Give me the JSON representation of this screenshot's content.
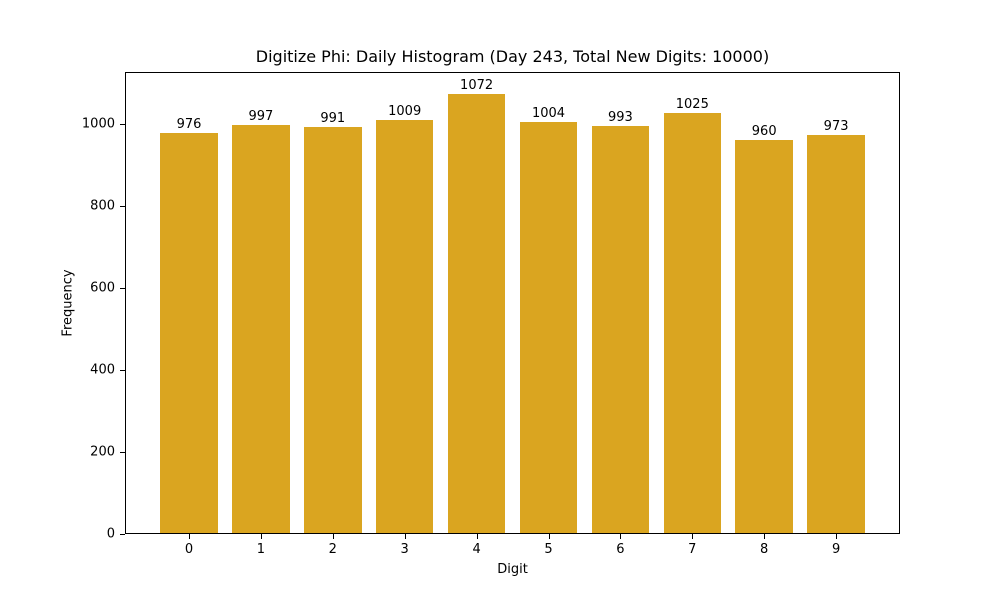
{
  "chart_data": {
    "type": "bar",
    "title": "Digitize Phi: Daily Histogram (Day 243, Total New Digits: 10000)",
    "xlabel": "Digit",
    "ylabel": "Frequency",
    "categories": [
      "0",
      "1",
      "2",
      "3",
      "4",
      "5",
      "6",
      "7",
      "8",
      "9"
    ],
    "values": [
      976,
      997,
      991,
      1009,
      1072,
      1004,
      993,
      1025,
      960,
      973
    ],
    "data_labels": [
      "976",
      "997",
      "991",
      "1009",
      "1072",
      "1004",
      "993",
      "1025",
      "960",
      "973"
    ],
    "ylim": [
      0,
      1125.6
    ],
    "yticks": [
      0,
      200,
      400,
      600,
      800,
      1000
    ],
    "xticks": [
      "0",
      "1",
      "2",
      "3",
      "4",
      "5",
      "6",
      "7",
      "8",
      "9"
    ],
    "grid": false,
    "legend": null,
    "bar_color": "#DAA520"
  }
}
